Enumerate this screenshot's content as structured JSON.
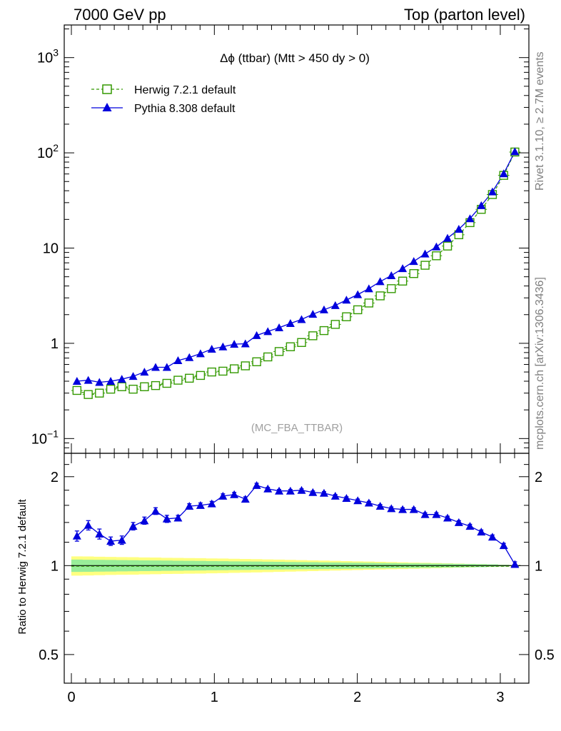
{
  "header": {
    "left": "7000 GeV pp",
    "right": "Top (parton level)"
  },
  "side_labels": {
    "rivet": "Rivet 3.1.10, ≥ 2.7M events",
    "mcplots": "mcplots.cern.ch [arXiv:1306.3436]"
  },
  "chart_data": [
    {
      "type": "line",
      "title": "Δϕ (ttbar) (Mtt > 450 dy > 0)",
      "watermark": "(MC_FBA_TTBAR)",
      "yscale": "log",
      "xlim": [
        -0.05,
        3.2
      ],
      "ylim": [
        0.07,
        2200
      ],
      "y_tick_labels": [
        "10−1",
        "1",
        "10",
        "102",
        "103"
      ],
      "legend_position": "top-left",
      "x": [
        0.039,
        0.118,
        0.196,
        0.275,
        0.353,
        0.432,
        0.511,
        0.589,
        0.668,
        0.746,
        0.825,
        0.903,
        0.982,
        1.06,
        1.139,
        1.217,
        1.296,
        1.374,
        1.453,
        1.532,
        1.61,
        1.689,
        1.767,
        1.846,
        1.924,
        2.003,
        2.081,
        2.16,
        2.238,
        2.317,
        2.395,
        2.474,
        2.553,
        2.631,
        2.71,
        2.788,
        2.867,
        2.945,
        3.024,
        3.102
      ],
      "series": [
        {
          "name": "Herwig 7.2.1 default",
          "color": "#339900",
          "marker": "open-square",
          "style": "dashed",
          "values": [
            0.32,
            0.29,
            0.3,
            0.33,
            0.35,
            0.33,
            0.35,
            0.36,
            0.38,
            0.41,
            0.43,
            0.46,
            0.5,
            0.51,
            0.54,
            0.58,
            0.64,
            0.72,
            0.82,
            0.92,
            1.02,
            1.2,
            1.36,
            1.58,
            1.9,
            2.25,
            2.65,
            3.15,
            3.75,
            4.5,
            5.4,
            6.6,
            8.3,
            10.5,
            13.8,
            18.5,
            25.5,
            36.5,
            58.0,
            102.0
          ]
        },
        {
          "name": "Pythia 8.308 default",
          "color": "#0000dd",
          "marker": "filled-triangle",
          "style": "solid",
          "values": [
            0.4,
            0.41,
            0.39,
            0.4,
            0.42,
            0.45,
            0.5,
            0.56,
            0.56,
            0.66,
            0.71,
            0.78,
            0.87,
            0.92,
            0.98,
            0.99,
            1.21,
            1.33,
            1.46,
            1.62,
            1.78,
            2.02,
            2.25,
            2.5,
            2.85,
            3.25,
            3.75,
            4.45,
            5.15,
            6.1,
            7.25,
            8.7,
            10.3,
            12.7,
            15.8,
            20.4,
            28.0,
            39.0,
            60.5,
            103.0
          ]
        }
      ]
    },
    {
      "type": "line",
      "ylabel": "Ratio to Herwig 7.2.1 default",
      "yscale": "log",
      "xlim": [
        -0.05,
        3.2
      ],
      "ylim": [
        0.4,
        2.4
      ],
      "x_tick_labels": [
        "0",
        "1",
        "2",
        "3"
      ],
      "y_tick_labels": [
        "0.5",
        "1",
        "2"
      ],
      "reference_line": 1.0,
      "band_colors": [
        "#ffff80",
        "#99ee99"
      ],
      "band_outer": [
        0.925,
        0.926,
        0.928,
        0.93,
        0.931,
        0.932,
        0.934,
        0.935,
        0.937,
        0.938,
        0.939,
        0.94,
        0.942,
        0.943,
        0.945,
        0.947,
        0.948,
        0.95,
        0.952,
        0.954,
        0.956,
        0.958,
        0.96,
        0.962,
        0.964,
        0.966,
        0.968,
        0.97,
        0.972,
        0.974,
        0.976,
        0.978,
        0.98,
        0.982,
        0.984,
        0.986,
        0.988,
        0.99,
        0.993,
        0.996
      ],
      "band_inner": [
        0.952,
        0.953,
        0.954,
        0.955,
        0.956,
        0.957,
        0.958,
        0.959,
        0.96,
        0.961,
        0.962,
        0.963,
        0.964,
        0.965,
        0.966,
        0.967,
        0.968,
        0.969,
        0.97,
        0.971,
        0.972,
        0.973,
        0.974,
        0.975,
        0.976,
        0.977,
        0.978,
        0.979,
        0.98,
        0.981,
        0.982,
        0.983,
        0.984,
        0.985,
        0.986,
        0.987,
        0.988,
        0.99,
        0.993,
        0.996
      ],
      "x": [
        0.039,
        0.118,
        0.196,
        0.275,
        0.353,
        0.432,
        0.511,
        0.589,
        0.668,
        0.746,
        0.825,
        0.903,
        0.982,
        1.06,
        1.139,
        1.217,
        1.296,
        1.374,
        1.453,
        1.532,
        1.61,
        1.689,
        1.767,
        1.846,
        1.924,
        2.003,
        2.081,
        2.16,
        2.238,
        2.317,
        2.395,
        2.474,
        2.553,
        2.631,
        2.71,
        2.788,
        2.867,
        2.945,
        3.024,
        3.102
      ],
      "series": [
        {
          "name": "Pythia 8.308 default",
          "color": "#0000dd",
          "marker": "filled-triangle",
          "values": [
            1.26,
            1.37,
            1.28,
            1.21,
            1.22,
            1.36,
            1.42,
            1.53,
            1.44,
            1.45,
            1.59,
            1.6,
            1.62,
            1.72,
            1.74,
            1.68,
            1.87,
            1.82,
            1.79,
            1.79,
            1.8,
            1.77,
            1.76,
            1.72,
            1.69,
            1.66,
            1.63,
            1.59,
            1.56,
            1.55,
            1.55,
            1.49,
            1.49,
            1.45,
            1.4,
            1.36,
            1.3,
            1.25,
            1.17,
            1.01
          ],
          "errors": [
            0.05,
            0.05,
            0.05,
            0.04,
            0.04,
            0.04,
            0.04,
            0.04,
            0.04,
            0.03,
            0.03,
            0.03,
            0.03,
            0.03,
            0.03,
            0.03,
            0.03,
            0.02,
            0.02,
            0.02,
            0.02,
            0.02,
            0.02,
            0.02,
            0.02,
            0.02,
            0.02,
            0.02,
            0.02,
            0.02,
            0.02,
            0.02,
            0.02,
            0.02,
            0.02,
            0.02,
            0.02,
            0.02,
            0.02,
            0.02
          ]
        }
      ]
    }
  ]
}
